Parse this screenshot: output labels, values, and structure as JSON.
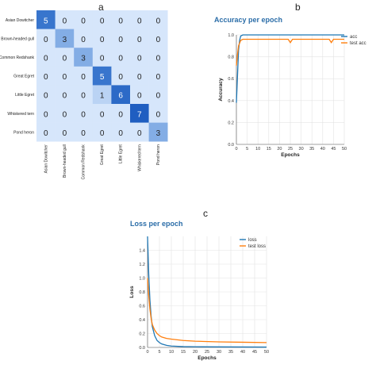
{
  "panel_labels": {
    "a": "a",
    "b": "b",
    "c": "c"
  },
  "colors": {
    "cm_low": "#d6e6fb",
    "cm_mid": "#4b87d6",
    "cm_high": "#1f5ec1",
    "acc_series": "#1f77b4",
    "test_series": "#ff7f0e",
    "title": "#2b6da8"
  },
  "chart_data": [
    {
      "type": "heatmap",
      "title": "",
      "rows": [
        "Asian Dowitcher",
        "Brown-headed gull",
        "Common Redshank",
        "Great Egret",
        "Little Egret",
        "Whiskered tern",
        "Pond heron"
      ],
      "columns": [
        "Asian Dowitcher",
        "Brown-headed gull",
        "Common Redshank",
        "Great Egret",
        "Little Egret",
        "Whiskered tern",
        "Pond heron"
      ],
      "values": [
        [
          5,
          0,
          0,
          0,
          0,
          0,
          0
        ],
        [
          0,
          3,
          0,
          0,
          0,
          0,
          0
        ],
        [
          0,
          0,
          3,
          0,
          0,
          0,
          0
        ],
        [
          0,
          0,
          0,
          5,
          0,
          0,
          0
        ],
        [
          0,
          0,
          0,
          1,
          6,
          0,
          0
        ],
        [
          0,
          0,
          0,
          0,
          0,
          7,
          0
        ],
        [
          0,
          0,
          0,
          0,
          0,
          0,
          3
        ]
      ]
    },
    {
      "type": "line",
      "title": "Accuracy per epoch",
      "xlabel": "Epochs",
      "ylabel": "Accuracy",
      "xlim": [
        0,
        50
      ],
      "ylim": [
        0,
        1.0
      ],
      "xticks": [
        0,
        5,
        10,
        15,
        20,
        25,
        30,
        35,
        40,
        45,
        50
      ],
      "yticks": [
        0.0,
        0.2,
        0.4,
        0.6,
        0.8,
        1.0
      ],
      "grid": true,
      "legend": "top-right",
      "series": [
        {
          "name": "acc",
          "x": [
            0,
            0.5,
            1,
            1.5,
            2,
            3,
            4,
            5,
            50
          ],
          "y": [
            0.38,
            0.62,
            0.86,
            0.95,
            0.99,
            1.0,
            1.0,
            1.0,
            1.0
          ]
        },
        {
          "name": "test acc",
          "x": [
            0,
            0.5,
            1,
            2,
            3,
            5,
            24,
            25,
            26,
            43,
            44,
            45,
            50
          ],
          "y": [
            0.72,
            0.82,
            0.9,
            0.95,
            0.96,
            0.96,
            0.96,
            0.93,
            0.96,
            0.96,
            0.93,
            0.96,
            0.96
          ]
        }
      ]
    },
    {
      "type": "line",
      "title": "Loss per epoch",
      "xlabel": "Epochs",
      "ylabel": "Loss",
      "xlim": [
        0,
        50
      ],
      "ylim": [
        0,
        1.6
      ],
      "xticks": [
        0,
        5,
        10,
        15,
        20,
        25,
        30,
        35,
        40,
        45,
        50
      ],
      "yticks": [
        0.0,
        0.2,
        0.4,
        0.6,
        0.8,
        1.0,
        1.2,
        1.4
      ],
      "grid": true,
      "legend": "top-right",
      "series": [
        {
          "name": "loss",
          "x": [
            0,
            0.5,
            1,
            1.5,
            2,
            3,
            4,
            5,
            6,
            8,
            10,
            15,
            20,
            30,
            50
          ],
          "y": [
            1.6,
            1.05,
            0.68,
            0.45,
            0.3,
            0.17,
            0.1,
            0.07,
            0.05,
            0.03,
            0.02,
            0.012,
            0.01,
            0.008,
            0.005
          ]
        },
        {
          "name": "test loss",
          "x": [
            0,
            0.5,
            1,
            1.5,
            2,
            3,
            4,
            5,
            6,
            8,
            10,
            15,
            20,
            30,
            40,
            50
          ],
          "y": [
            1.0,
            0.75,
            0.55,
            0.42,
            0.33,
            0.25,
            0.2,
            0.17,
            0.15,
            0.13,
            0.12,
            0.1,
            0.09,
            0.08,
            0.075,
            0.07
          ]
        }
      ]
    }
  ]
}
